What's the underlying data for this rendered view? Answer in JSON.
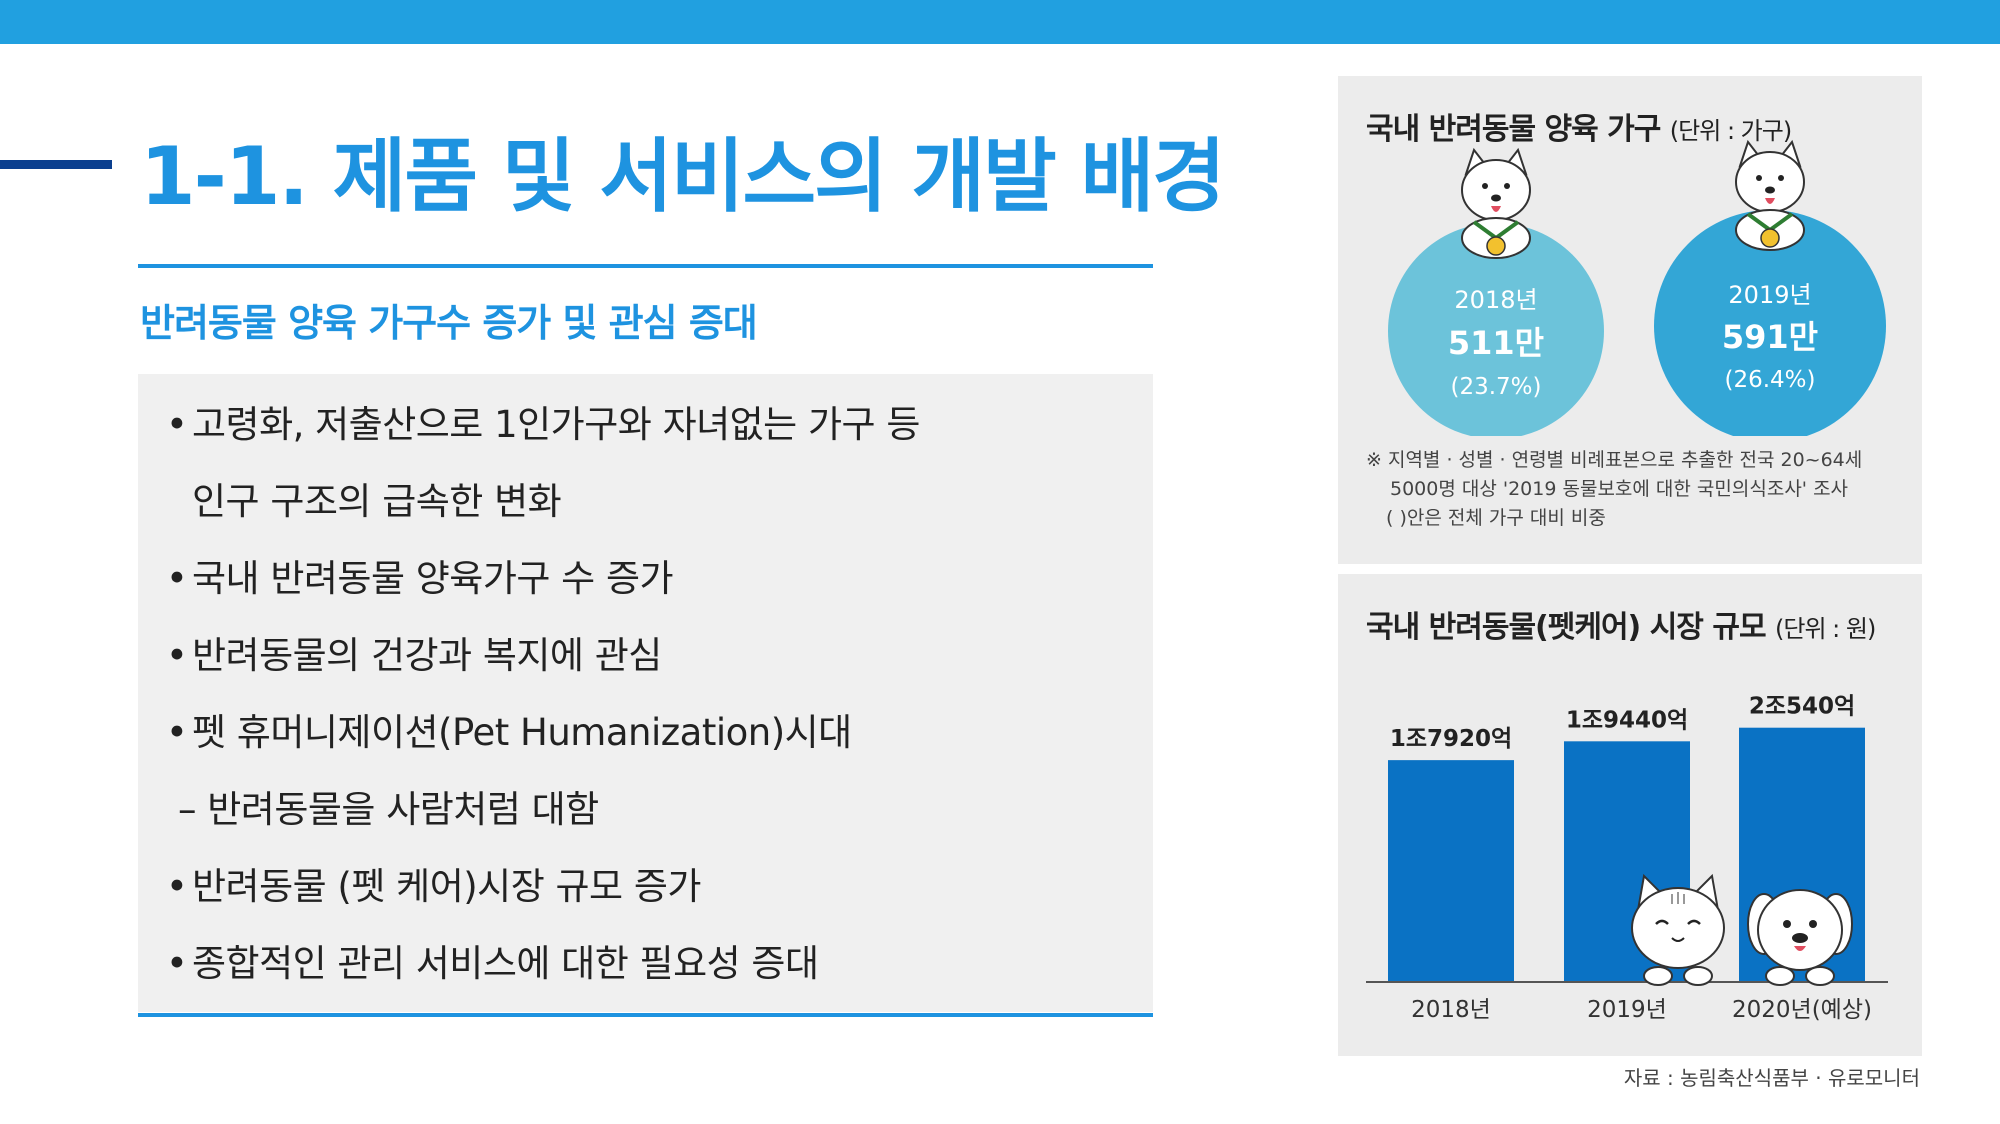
{
  "header": {
    "title": "1-1. 제품 및 서비스의 개발 배경",
    "subtitle": "반려동물 양육 가구수 증가 및 관심 증대"
  },
  "bullets": [
    {
      "bullet": "•",
      "text": "고령화, 저출산으로 1인가구와 자녀없는 가구 등"
    },
    {
      "bullet": "",
      "text": "인구 구조의 급속한 변화"
    },
    {
      "bullet": "•",
      "text": "국내 반려동물 양육가구 수 증가"
    },
    {
      "bullet": "•",
      "text": "반려동물의 건강과 복지에 관심"
    },
    {
      "bullet": "•",
      "text": "펫 휴머니제이션(Pet Humanization)시대"
    },
    {
      "bullet": "",
      "text": "– 반려동물을 사람처럼 대함"
    },
    {
      "bullet": "•",
      "text": "반려동물 (펫 케어)시장 규모 증가"
    },
    {
      "bullet": "•",
      "text": "종합적인 관리 서비스에 대한 필요성 증대"
    }
  ],
  "households_panel": {
    "title": "국내 반려동물 양육 가구",
    "unit": "(단위 : 가구)",
    "circles": [
      {
        "year": "2018년",
        "value": "511만",
        "share": "(23.7%)",
        "color": "#6cc3da"
      },
      {
        "year": "2019년",
        "value": "591만",
        "share": "(26.4%)",
        "color": "#33a6d6"
      }
    ],
    "footnote": [
      "※ 지역별 · 성별 · 연령별 비례표본으로 추출한 전국 20~64세",
      "5000명 대상 '2019 동물보호에 대한 국민의식조사' 조사",
      "(    )안은 전체 가구 대비 비중"
    ]
  },
  "market_panel": {
    "title": "국내 반려동물(펫케어) 시장 규모",
    "unit": "(단위 : 원)",
    "bar_color": "#0a72c4"
  },
  "chart_data": {
    "type": "bar",
    "title": "국내 반려동물(펫케어) 시장 규모",
    "unit": "(단위 : 원)",
    "categories": [
      "2018년",
      "2019년",
      "2020년(예상)"
    ],
    "values": [
      17920,
      19440,
      20540
    ],
    "value_labels": [
      "1조7920억",
      "1조9440억",
      "2조540억"
    ],
    "ylim": [
      0,
      21000
    ],
    "grid": false
  },
  "source": "자료 : 농림축산식품부 · 유로모니터",
  "colors": {
    "top_bar": "#21a0e0",
    "accent_blue": "#1e93e0",
    "dark_blue": "#0b3f8f"
  }
}
